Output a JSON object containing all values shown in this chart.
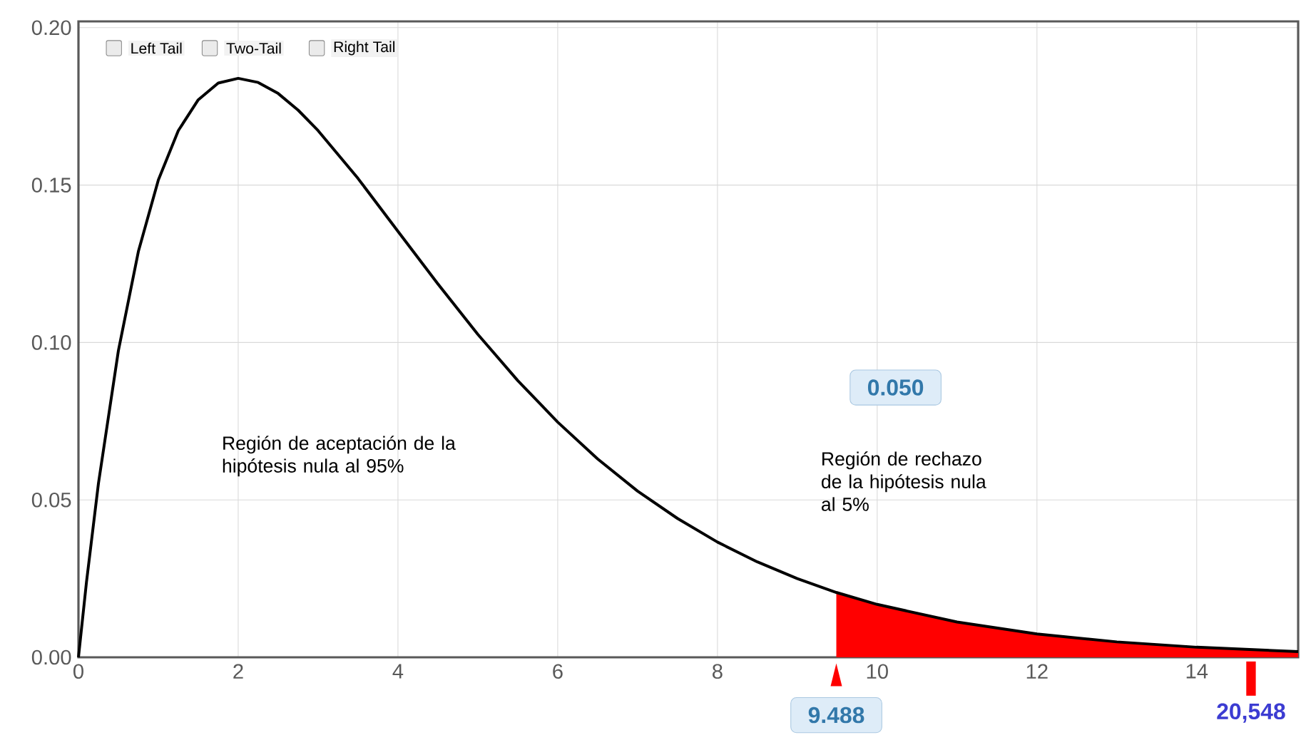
{
  "chart_data": {
    "type": "line",
    "series": [
      {
        "type": "area",
        "color": "#ff0000",
        "x": [
          9.488,
          10,
          11,
          12,
          13,
          14,
          15,
          15.27
        ],
        "values": [
          0.0206,
          0.0168,
          0.0112,
          0.0074,
          0.0049,
          0.0032,
          0.0021,
          0.0018
        ]
      },
      {
        "color": "#000000",
        "x": [
          0,
          0.1,
          0.25,
          0.5,
          0.75,
          1,
          1.25,
          1.5,
          1.75,
          2,
          2.25,
          2.5,
          2.75,
          3,
          3.5,
          4,
          4.5,
          5,
          5.5,
          6,
          6.5,
          7,
          7.5,
          8,
          8.5,
          9,
          9.488,
          10,
          11,
          12,
          13,
          14,
          15,
          15.27
        ],
        "values": [
          0,
          0.0238,
          0.0552,
          0.0974,
          0.1289,
          0.1516,
          0.1673,
          0.1771,
          0.1824,
          0.1839,
          0.1826,
          0.1791,
          0.1738,
          0.1673,
          0.1521,
          0.1353,
          0.1186,
          0.1026,
          0.0879,
          0.0747,
          0.063,
          0.0528,
          0.0441,
          0.0366,
          0.0303,
          0.025,
          0.0206,
          0.0168,
          0.0112,
          0.0074,
          0.0049,
          0.0032,
          0.0021,
          0.0018
        ]
      }
    ],
    "xlim": [
      0,
      15.27
    ],
    "ylim": [
      0,
      0.202
    ],
    "xticks": [
      0,
      2,
      4,
      6,
      8,
      10,
      12,
      14
    ],
    "yticks": [
      {
        "value": 0,
        "label": "0.00"
      },
      {
        "value": 0.05,
        "label": "0.05"
      },
      {
        "value": 0.1,
        "label": "0.10"
      },
      {
        "value": 0.15,
        "label": "0.15"
      },
      {
        "value": 0.2,
        "label": "0.20"
      }
    ],
    "grid": true,
    "marker": "none",
    "line_style": "solid",
    "annotations": [
      "Left Tail",
      "Two-Tail",
      "Right Tail",
      "Región de aceptación de la hipótesis nula al 95%",
      "0.050",
      "Región de rechazo de la hipótesis nula al 5%",
      {
        "text": "9.488",
        "x": 9.488,
        "y": 0
      },
      {
        "text": "20,548",
        "x": 14.68,
        "y": 0
      }
    ]
  }
}
